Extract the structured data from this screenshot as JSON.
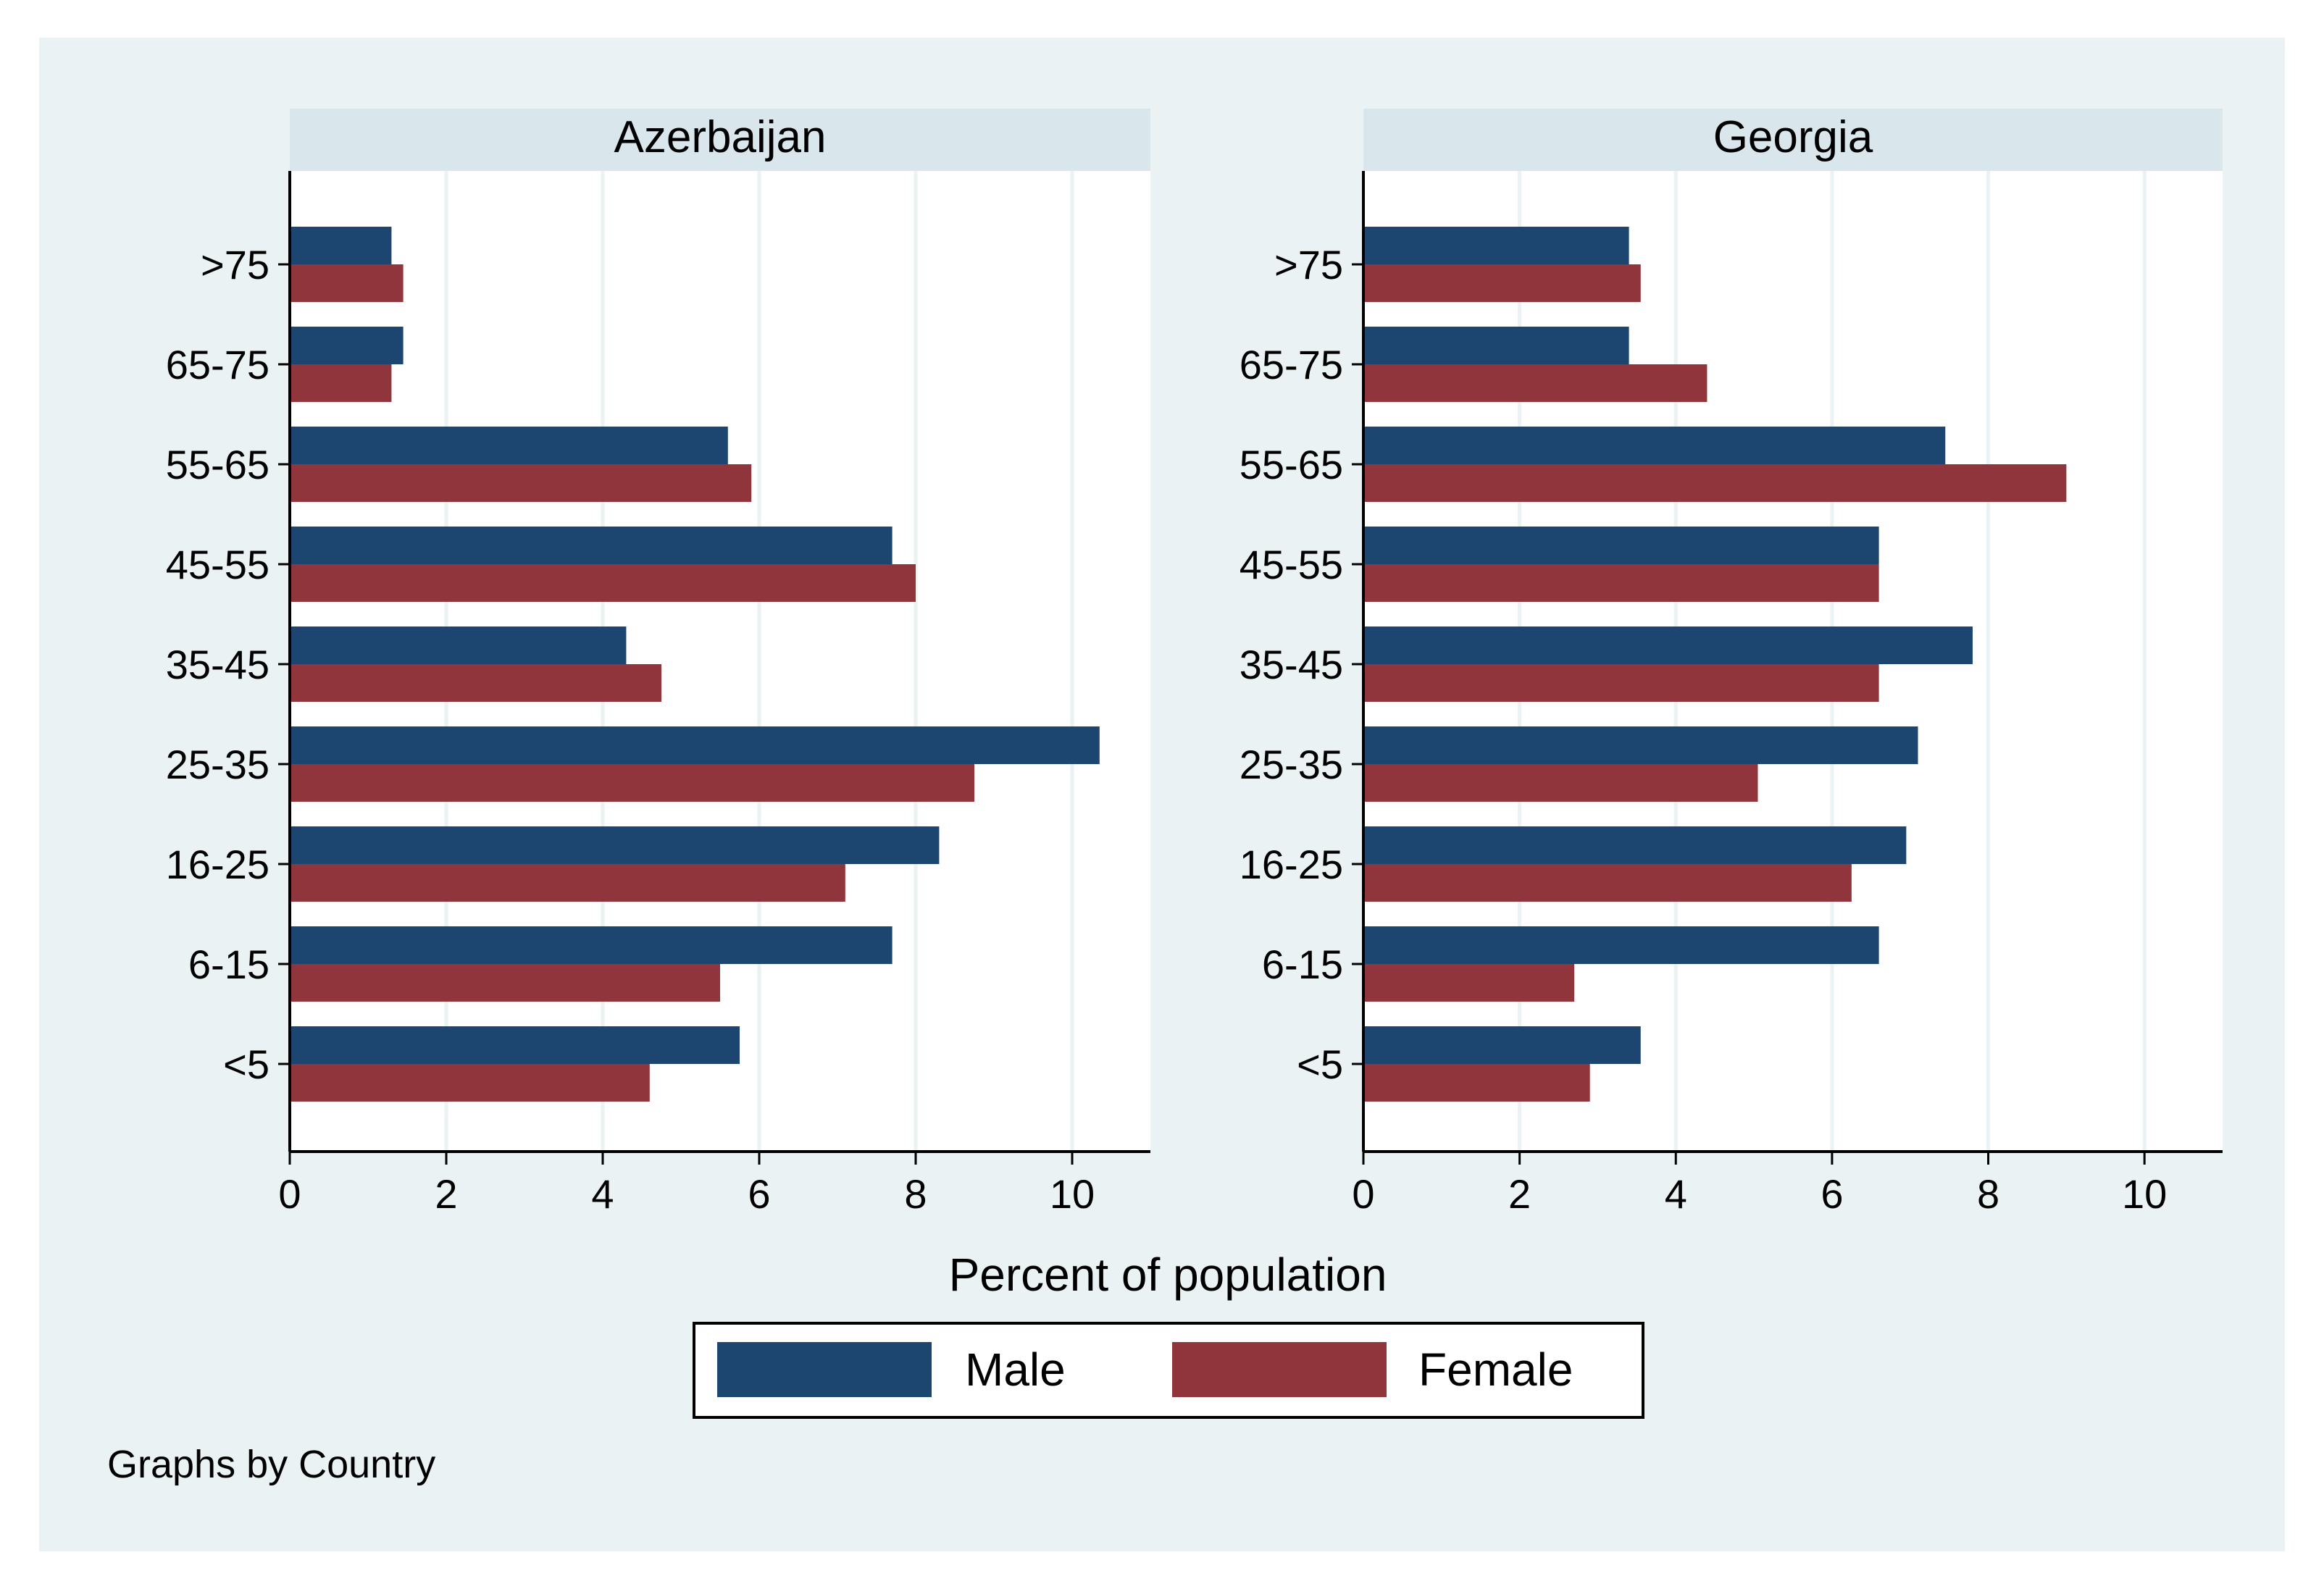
{
  "chart_data": {
    "type": "bar",
    "orientation": "horizontal",
    "xlabel": "Percent of population",
    "xlim": [
      0,
      11
    ],
    "xticks": [
      0,
      2,
      4,
      6,
      8,
      10
    ],
    "categories": [
      ">75",
      "65-75",
      "55-65",
      "45-55",
      "35-45",
      "25-35",
      "16-25",
      "6-15",
      "<5"
    ],
    "note": "Graphs by Country",
    "legend": {
      "position": "bottom",
      "entries": [
        {
          "name": "Male",
          "color": "#1c4670"
        },
        {
          "name": "Female",
          "color": "#90353b"
        }
      ]
    },
    "panels": [
      {
        "title": "Azerbaijan",
        "series": [
          {
            "name": "Male",
            "values": [
              1.3,
              1.45,
              5.6,
              7.7,
              4.3,
              10.35,
              8.3,
              7.7,
              5.75
            ]
          },
          {
            "name": "Female",
            "values": [
              1.45,
              1.3,
              5.9,
              8.0,
              4.75,
              8.75,
              7.1,
              5.5,
              4.6
            ]
          }
        ]
      },
      {
        "title": "Georgia",
        "series": [
          {
            "name": "Male",
            "values": [
              3.4,
              3.4,
              7.45,
              6.6,
              7.8,
              7.1,
              6.95,
              6.6,
              3.55
            ]
          },
          {
            "name": "Female",
            "values": [
              3.55,
              4.4,
              9.0,
              6.6,
              6.6,
              5.05,
              6.25,
              2.7,
              2.9
            ]
          }
        ]
      }
    ]
  },
  "colors": {
    "background": "#eaf2f3",
    "plot_background": "#ffffff",
    "header_background": "#d9e6eb",
    "grid": "#eaf2f3",
    "male": "#1c4670",
    "female": "#90353b"
  }
}
